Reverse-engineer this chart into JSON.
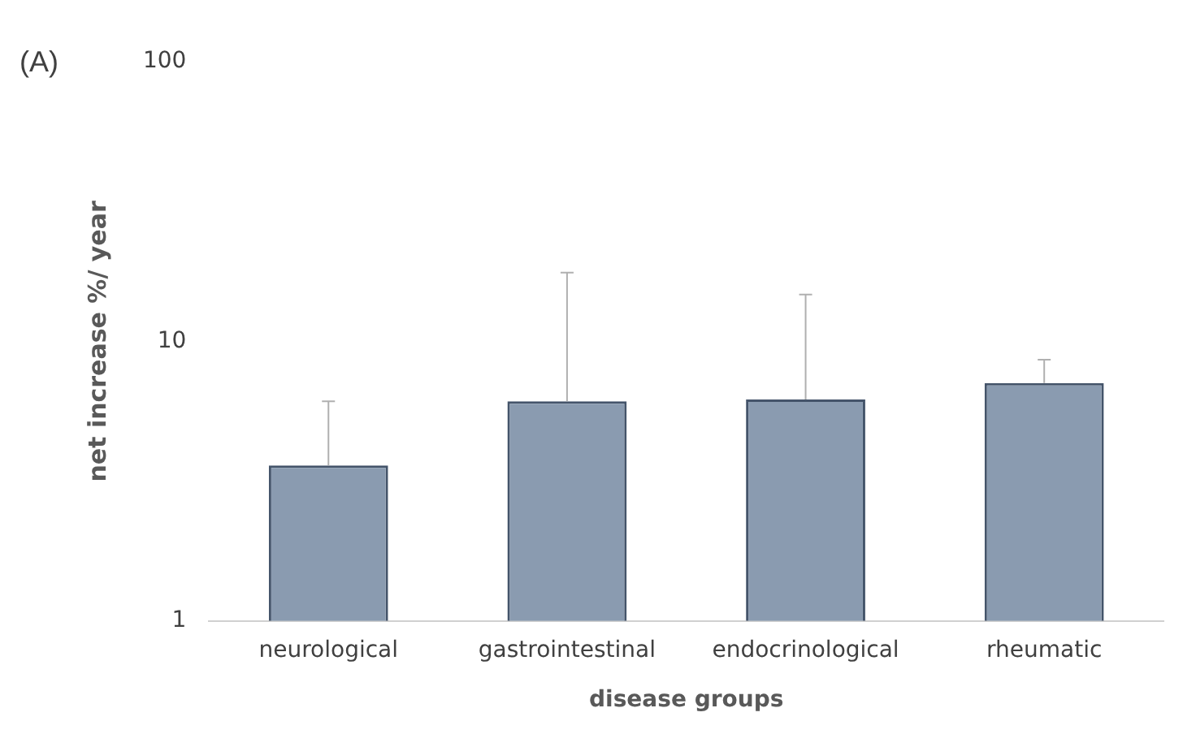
{
  "chart_data": {
    "type": "bar",
    "title": "(A)",
    "xlabel": "disease groups",
    "ylabel": "net increase %/ year",
    "categories": [
      "neurological",
      "gastrointestinal",
      "endocrinological",
      "rheumatic"
    ],
    "values": [
      3.6,
      6.1,
      6.2,
      7.1
    ],
    "errors": [
      [
        3.6,
        6.1
      ],
      [
        6.1,
        17.6
      ],
      [
        6.2,
        14.7
      ],
      [
        7.1,
        8.6
      ]
    ],
    "color": "#8a9bb0",
    "log": true,
    "ylim": [
      1,
      100
    ],
    "yticks": [
      1,
      10,
      100
    ],
    "grid": false,
    "legend": false
  }
}
